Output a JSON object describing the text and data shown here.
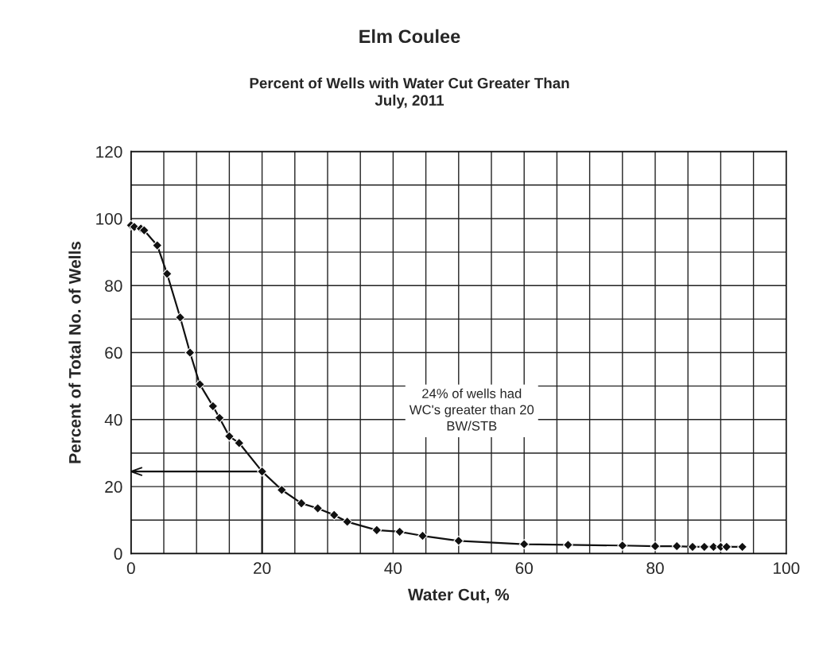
{
  "chart_data": {
    "type": "line",
    "title": "Elm Coulee",
    "subtitle": "Percent of Wells with Water Cut Greater Than\nJuly, 2011",
    "xlabel": "Water Cut, %",
    "ylabel": "Percent of Total No. of Wells",
    "x": [
      0,
      0.5,
      1.5,
      2,
      4,
      5.5,
      7.5,
      9,
      10.5,
      12.5,
      13.5,
      15,
      16.5,
      20,
      23,
      26,
      28.5,
      31,
      33,
      37.5,
      41,
      44.5,
      50,
      60,
      66.7,
      75,
      80,
      83.3,
      85.7,
      87.5,
      88.9,
      90,
      90.9,
      93.3
    ],
    "series": [
      {
        "color": "#111111",
        "values": [
          98,
          97.5,
          97,
          96.5,
          92,
          83.5,
          70.5,
          60,
          50.5,
          44,
          40.5,
          35,
          33,
          24.5,
          19,
          15,
          13.5,
          11.5,
          9.5,
          7,
          6.5,
          5.3,
          3.8,
          2.8,
          2.6,
          2.4,
          2.2,
          2.2,
          2,
          2,
          2,
          2,
          2,
          2
        ]
      }
    ],
    "annotations": [
      "24% of wells had\nWC's greater than 20\nBW/STB"
    ],
    "xlim": [
      0,
      100
    ],
    "ylim": [
      0,
      120
    ],
    "xticks": [
      0,
      20,
      40,
      60,
      80,
      100
    ],
    "yticks": [
      0,
      20,
      40,
      60,
      80,
      100,
      120
    ],
    "grid": true,
    "marker": "diamond",
    "line_style": "solid",
    "legend": false
  }
}
